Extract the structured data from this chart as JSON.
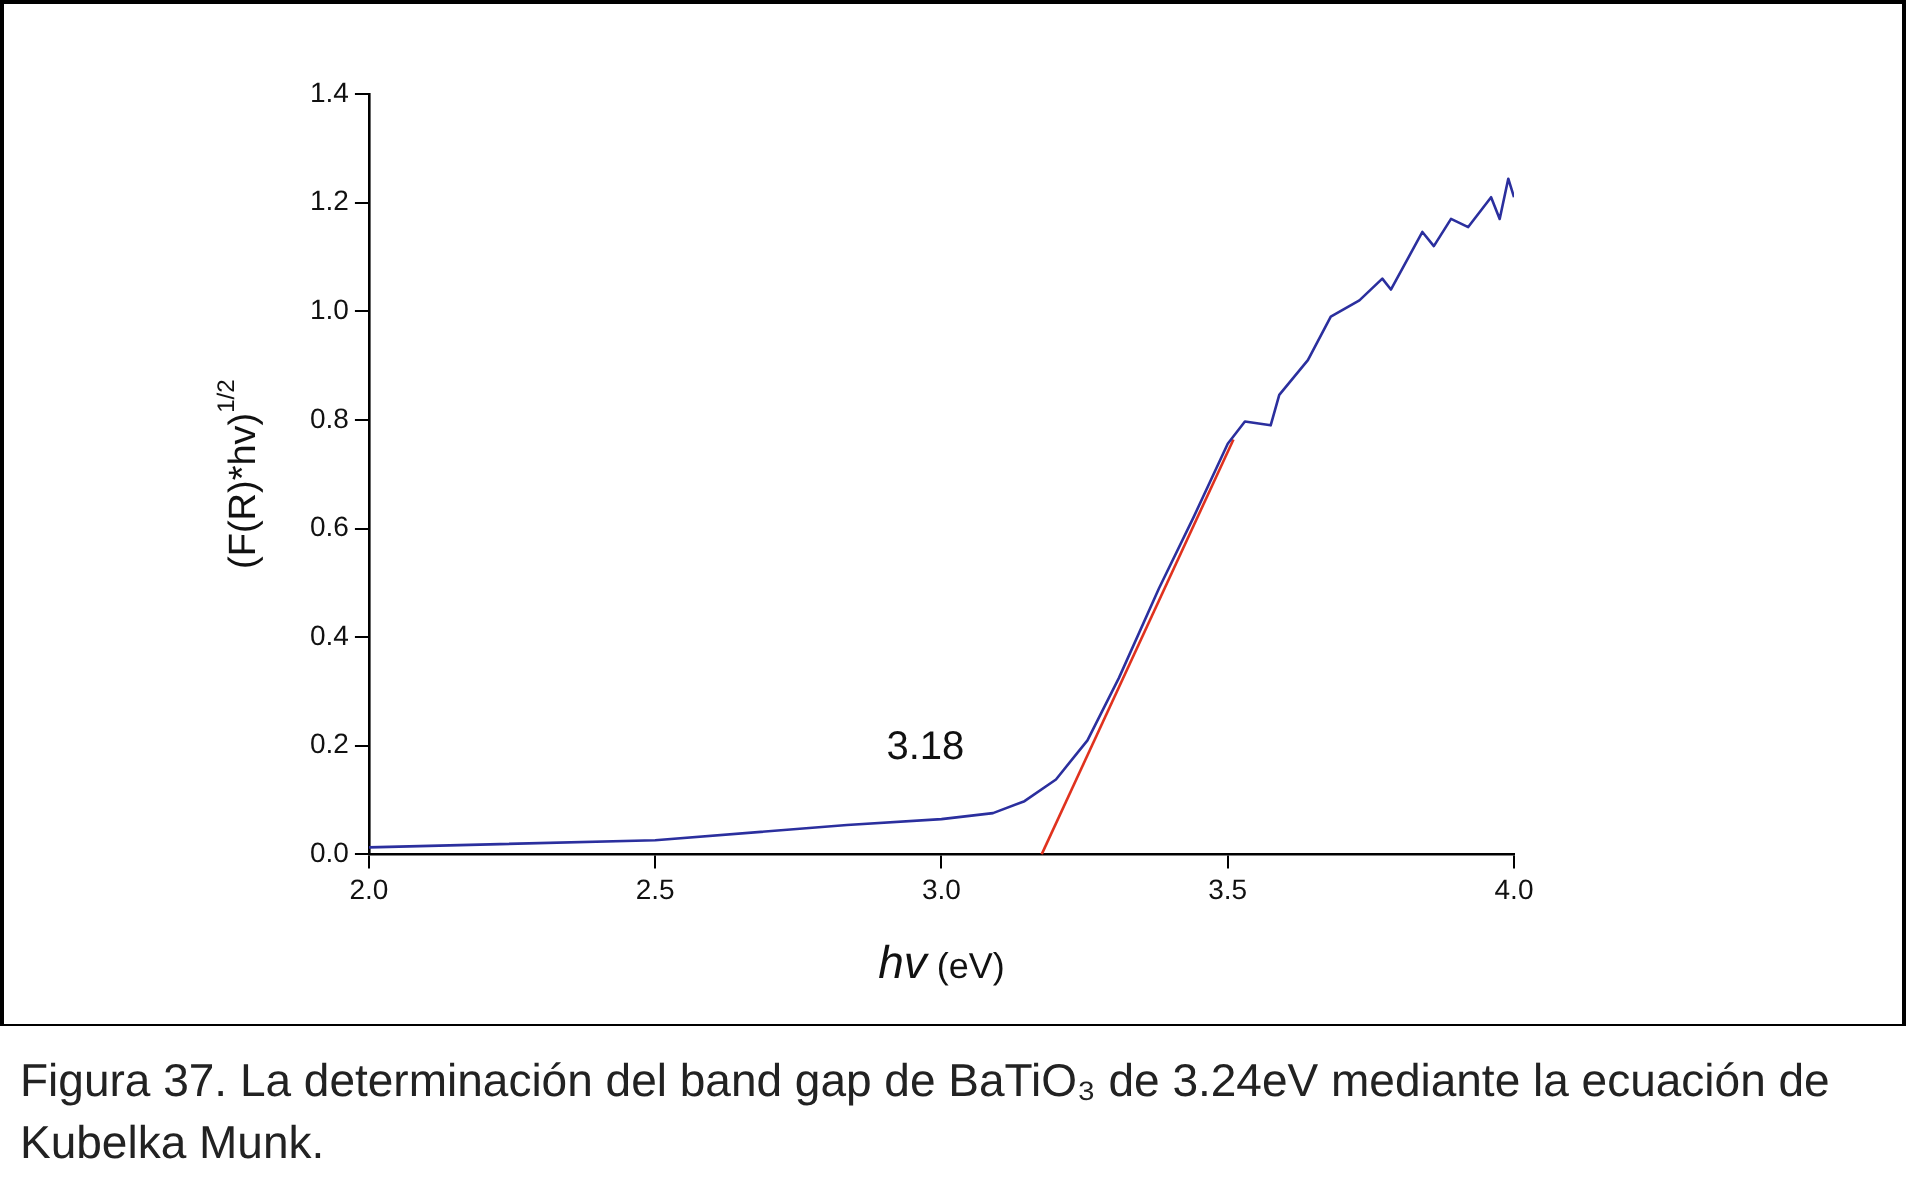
{
  "chart_data": {
    "type": "line",
    "xlabel": "hv (eV)",
    "ylabel": "(F(R)*hv)$^{1/2}$",
    "xlim": [
      2.0,
      4.0
    ],
    "xticks": [
      {
        "value": 2,
        "label": "2.0"
      },
      {
        "value": 2.5,
        "label": "2.5"
      },
      {
        "value": 3,
        "label": "3.0"
      },
      {
        "value": 3.5,
        "label": "3.5"
      },
      {
        "value": 4,
        "label": "4.0"
      }
    ],
    "ylim": [
      0,
      1.4
    ],
    "yticks": [
      {
        "value": 0,
        "label": "0.0"
      },
      {
        "value": 0.2,
        "label": "0.2"
      },
      {
        "value": 0.4,
        "label": "0.4"
      },
      {
        "value": 0.6,
        "label": "0.6"
      },
      {
        "value": 0.8,
        "label": "0.8"
      },
      {
        "value": 1,
        "label": "1.0"
      },
      {
        "value": 1.2,
        "label": "1.2"
      },
      {
        "value": 1.4,
        "label": "1.4"
      }
    ],
    "grid": false,
    "legend": false,
    "marker": "none",
    "line_style": "solid",
    "series": [
      {
        "color": "#2b2f9e",
        "x": [
          2.0,
          2.5,
          2.835,
          3.0,
          3.09,
          3.145,
          3.2,
          3.255,
          3.31,
          3.38,
          3.44,
          3.5,
          3.53,
          3.575,
          3.59,
          3.64,
          3.68,
          3.73,
          3.77,
          3.785,
          3.84,
          3.86,
          3.89,
          3.92,
          3.96,
          3.975,
          3.99,
          4.0
        ],
        "values": [
          0.013,
          0.026,
          0.054,
          0.065,
          0.076,
          0.098,
          0.138,
          0.21,
          0.325,
          0.49,
          0.62,
          0.756,
          0.797,
          0.79,
          0.846,
          0.91,
          0.99,
          1.02,
          1.06,
          1.04,
          1.146,
          1.12,
          1.17,
          1.155,
          1.21,
          1.17,
          1.244,
          1.21
        ]
      },
      {
        "color": "#e0321e",
        "x": [
          3.175,
          3.51
        ],
        "values": [
          0,
          0.764
        ]
      }
    ],
    "annotations": [
      "3.18",
      "Figura 37. La determinación del band gap de BaTiO₃ de 3.24eV mediante la ecuación de Kubelka Munk."
    ]
  }
}
